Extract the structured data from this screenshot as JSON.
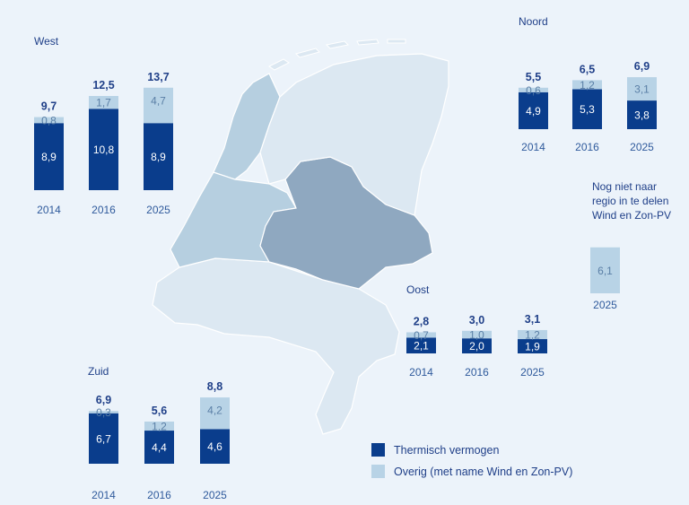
{
  "colors": {
    "thermal": "#0a3d8c",
    "other": "#b8d3e6",
    "label_dark": "#1f3f88",
    "label_axis": "#2f5a9c",
    "label_on_light": "#5a7fa6",
    "map_light": "#dce8f2",
    "map_mid": "#b6cfe0",
    "map_dark": "#8fa8c0",
    "map_border": "#ffffff"
  },
  "chart_data": [
    {
      "type": "bar",
      "stacked": true,
      "title": "West",
      "categories": [
        "2014",
        "2016",
        "2025"
      ],
      "series": [
        {
          "name": "Thermisch vermogen",
          "values": [
            8.9,
            10.8,
            8.9
          ],
          "labels": [
            "8,9",
            "10,8",
            "8,9"
          ]
        },
        {
          "name": "Overig (met name Wind en Zon-PV)",
          "values": [
            0.8,
            1.7,
            4.7
          ],
          "labels": [
            "0,8",
            "1,7",
            "4,7"
          ]
        }
      ],
      "totals": [
        "9,7",
        "12,5",
        "13,7"
      ]
    },
    {
      "type": "bar",
      "stacked": true,
      "title": "Noord",
      "categories": [
        "2014",
        "2016",
        "2025"
      ],
      "series": [
        {
          "name": "Thermisch vermogen",
          "values": [
            4.9,
            5.3,
            3.8
          ],
          "labels": [
            "4,9",
            "5,3",
            "3,8"
          ]
        },
        {
          "name": "Overig (met name Wind en Zon-PV)",
          "values": [
            0.6,
            1.2,
            3.1
          ],
          "labels": [
            "0,6",
            "1,2",
            "3,1"
          ]
        }
      ],
      "totals": [
        "5,5",
        "6,5",
        "6,9"
      ]
    },
    {
      "type": "bar",
      "stacked": true,
      "title": "Oost",
      "categories": [
        "2014",
        "2016",
        "2025"
      ],
      "series": [
        {
          "name": "Thermisch vermogen",
          "values": [
            2.1,
            2.0,
            1.9
          ],
          "labels": [
            "2,1",
            "2,0",
            "1,9"
          ]
        },
        {
          "name": "Overig (met name Wind en Zon-PV)",
          "values": [
            0.7,
            1.0,
            1.2
          ],
          "labels": [
            "0,7",
            "1,0",
            "1,2"
          ]
        }
      ],
      "totals": [
        "2,8",
        "3,0",
        "3,1"
      ]
    },
    {
      "type": "bar",
      "stacked": true,
      "title": "Zuid",
      "categories": [
        "2014",
        "2016",
        "2025"
      ],
      "series": [
        {
          "name": "Thermisch vermogen",
          "values": [
            6.7,
            4.4,
            4.6
          ],
          "labels": [
            "6,7",
            "4,4",
            "4,6"
          ]
        },
        {
          "name": "Overig (met name Wind en Zon-PV)",
          "values": [
            0.3,
            1.2,
            4.2
          ],
          "labels": [
            "0,3",
            "1,2",
            "4,2"
          ]
        }
      ],
      "totals": [
        "6,9",
        "5,6",
        "8,8"
      ]
    },
    {
      "type": "bar",
      "title": "Nog niet naar regio in te delen Wind en Zon-PV",
      "title_lines": [
        "Nog niet naar",
        "regio in te delen",
        "Wind en Zon-PV"
      ],
      "categories": [
        "2025"
      ],
      "series": [
        {
          "name": "Overig (met name Wind en Zon-PV)",
          "values": [
            6.1
          ],
          "labels": [
            "6,1"
          ]
        }
      ]
    }
  ],
  "legend": {
    "items": [
      {
        "label": "Thermisch vermogen",
        "series": "thermal"
      },
      {
        "label": "Overig (met name Wind en Zon-PV)",
        "series": "other"
      }
    ]
  }
}
